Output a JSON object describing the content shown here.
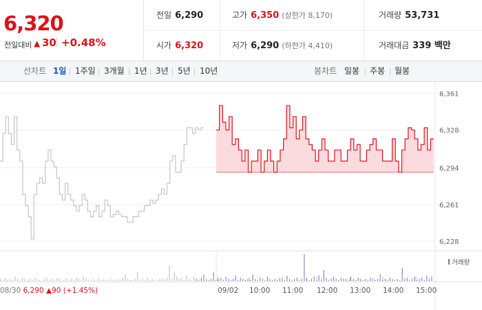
{
  "summary": {
    "current_price": "6,320",
    "change_label": "전일대비",
    "change_arrow": "▲",
    "change_amount": "30",
    "change_percent": "+0.48%"
  },
  "stats": {
    "prev_close": {
      "label": "전일",
      "value": "6,290"
    },
    "high": {
      "label": "고가",
      "value": "6,350",
      "sub": "(상한가 8,170)"
    },
    "volume": {
      "label": "거래량",
      "value": "53,731"
    },
    "open": {
      "label": "시가",
      "value": "6,320"
    },
    "low": {
      "label": "저가",
      "value": "6,290",
      "sub": "(하한가 4,410)"
    },
    "trade_value": {
      "label": "거래대금",
      "value": "339 백만"
    }
  },
  "toolbar": {
    "line_chart_label": "선차트",
    "line_periods": [
      "1일",
      "1주일",
      "3개월",
      "1년",
      "3년",
      "5년",
      "10년"
    ],
    "active_period": "1일",
    "candle_chart_label": "봉차트",
    "candle_periods": [
      "일봉",
      "주봉",
      "월봉"
    ]
  },
  "chart_data": {
    "type": "line",
    "ylim": [
      6220,
      6365
    ],
    "yticks": [
      "6,361",
      "6,328",
      "6,294",
      "6,261",
      "6,228"
    ],
    "ytick_values": [
      6361,
      6328,
      6294,
      6261,
      6228
    ],
    "x_tick_labels": [
      "09/02",
      "10:00",
      "11:00",
      "12:00",
      "13:00",
      "14:00",
      "15:00"
    ],
    "prev_day_label": {
      "date": "08/30",
      "price": "6,290",
      "arrow": "▲",
      "change": "90",
      "percent": "(+1.45%)"
    },
    "baseline": 6290,
    "series": [
      {
        "period": "previous day",
        "color": "#c4c4c4",
        "values": [
          6300,
          6325,
          6340,
          6325,
          6315,
          6340,
          6310,
          6300,
          6270,
          6260,
          6250,
          6230,
          6270,
          6280,
          6285,
          6280,
          6300,
          6310,
          6300,
          6295,
          6285,
          6270,
          6265,
          6280,
          6270,
          6265,
          6260,
          6255,
          6260,
          6270,
          6265,
          6255,
          6250,
          6255,
          6260,
          6250,
          6255,
          6265,
          6260,
          6250,
          6252,
          6255,
          6252,
          6250,
          6250,
          6245,
          6245,
          6250,
          6250,
          6255,
          6255,
          6260,
          6260,
          6265,
          6262,
          6265,
          6270,
          6275,
          6270,
          6280,
          6300,
          6305,
          6290,
          6290,
          6300,
          6315,
          6330,
          6330,
          6325,
          6330,
          6328,
          6330
        ]
      },
      {
        "period": "today",
        "color": "#e0101c",
        "fill": "#fbd5d8",
        "values": [
          6328,
          6350,
          6335,
          6328,
          6340,
          6315,
          6320,
          6310,
          6300,
          6310,
          6290,
          6300,
          6300,
          6310,
          6290,
          6300,
          6310,
          6300,
          6290,
          6300,
          6310,
          6320,
          6350,
          6330,
          6340,
          6320,
          6328,
          6340,
          6320,
          6315,
          6310,
          6300,
          6310,
          6320,
          6310,
          6300,
          6300,
          6310,
          6310,
          6300,
          6300,
          6310,
          6320,
          6310,
          6315,
          6300,
          6300,
          6310,
          6315,
          6320,
          6310,
          6310,
          6300,
          6300,
          6300,
          6320,
          6300,
          6290,
          6310,
          6320,
          6330,
          6328,
          6320,
          6310,
          6315,
          6330,
          6310,
          6320
        ]
      }
    ],
    "volume_legend": "거래량",
    "volume_color": "#7a6fb6",
    "volume": [
      2,
      1,
      3,
      1,
      2,
      1,
      4,
      2,
      1,
      3,
      2,
      1,
      2,
      1,
      3,
      2,
      1,
      1,
      2,
      3,
      1,
      2,
      1,
      2,
      3,
      1,
      1,
      2,
      1,
      2,
      1,
      3,
      2,
      1,
      4,
      2,
      1,
      1,
      2,
      1,
      3,
      1,
      2,
      1,
      1,
      2,
      1,
      1,
      2,
      1,
      3,
      6,
      2,
      1,
      1,
      2,
      8,
      1,
      2,
      1,
      3,
      1,
      2,
      1,
      1,
      2,
      2,
      1,
      3,
      14,
      2,
      8,
      4,
      2,
      3,
      1,
      5,
      2,
      1,
      4,
      2,
      1,
      3,
      6,
      2,
      1,
      2,
      8,
      1,
      2,
      3,
      1,
      4,
      2,
      1,
      2,
      5,
      1,
      3,
      2,
      1,
      2,
      1,
      6,
      2,
      1,
      3,
      2,
      1,
      4,
      2,
      1,
      2,
      1,
      3,
      2,
      1,
      5,
      2,
      1,
      2,
      3,
      1,
      2,
      24,
      3,
      1,
      2,
      4,
      1,
      5,
      2,
      10,
      3,
      1,
      2,
      4,
      2,
      1,
      3,
      2,
      2,
      1,
      4,
      2,
      1,
      3,
      2,
      1,
      2,
      1,
      3,
      2,
      1,
      2,
      6,
      1,
      2,
      1,
      3,
      2,
      1,
      2,
      1,
      12,
      2,
      3,
      1,
      2,
      4,
      1,
      2,
      3,
      1,
      5,
      2,
      4
    ]
  }
}
